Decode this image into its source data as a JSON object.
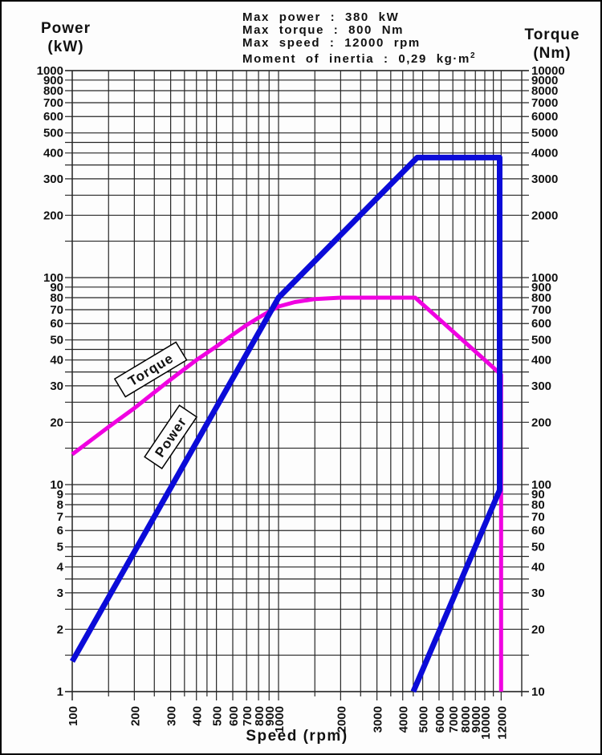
{
  "header": {
    "lines": [
      "Max power : 380 kW",
      "Max torque : 800 Nm",
      "Max speed : 12000 rpm"
    ],
    "moment_line": "Moment of inertia : 0,29 kg·m",
    "moment_superscript": "2"
  },
  "axes_titles": {
    "left_line1": "Power",
    "left_line2": "(kW)",
    "right_line1": "Torque",
    "right_line2": "(Nm)",
    "bottom": "Speed (rpm)"
  },
  "colors": {
    "power_curve": "#0b0bd8",
    "torque_curve": "#f000e1",
    "grid": "#262626",
    "text": "#111111"
  },
  "chart_data": {
    "type": "line",
    "title": "Motor power and torque vs speed",
    "x_axis": {
      "label": "Speed (rpm)",
      "scale": "log",
      "min": 100,
      "max": 12000,
      "gridlines": [
        100,
        150,
        200,
        250,
        300,
        350,
        400,
        450,
        500,
        600,
        700,
        800,
        900,
        1000,
        1500,
        2000,
        2500,
        3000,
        3500,
        4000,
        4500,
        5000,
        6000,
        7000,
        8000,
        9000,
        10000,
        11000,
        12000
      ],
      "labeled_ticks": [
        100,
        200,
        300,
        400,
        500,
        600,
        700,
        800,
        900,
        1000,
        2000,
        3000,
        4000,
        5000,
        6000,
        7000,
        8000,
        9000,
        10000,
        12000
      ]
    },
    "y_axis_left": {
      "label": "Power (kW)",
      "scale": "log",
      "min": 1,
      "max": 1000,
      "gridlines": [
        1,
        1.5,
        2,
        2.5,
        3,
        3.5,
        4,
        4.5,
        5,
        6,
        7,
        8,
        9,
        10,
        15,
        20,
        25,
        30,
        35,
        40,
        45,
        50,
        60,
        70,
        80,
        90,
        100,
        150,
        200,
        250,
        300,
        350,
        400,
        450,
        500,
        600,
        700,
        800,
        900,
        1000
      ],
      "labeled_ticks": [
        1,
        2,
        3,
        4,
        5,
        6,
        7,
        8,
        9,
        10,
        20,
        30,
        40,
        50,
        60,
        70,
        80,
        90,
        100,
        200,
        300,
        400,
        500,
        600,
        700,
        800,
        900,
        1000
      ]
    },
    "y_axis_right": {
      "label": "Torque (Nm)",
      "scale": "log",
      "min": 10,
      "max": 10000,
      "labeled_ticks": [
        10,
        20,
        30,
        40,
        50,
        60,
        70,
        80,
        90,
        100,
        200,
        300,
        400,
        500,
        600,
        700,
        800,
        900,
        1000,
        2000,
        3000,
        4000,
        5000,
        6000,
        7000,
        8000,
        9000,
        10000
      ]
    },
    "series": [
      {
        "name": "Torque",
        "axis": "right",
        "color": "#f000e1",
        "stroke_width": 5,
        "points": [
          [
            100,
            140
          ],
          [
            150,
            190
          ],
          [
            200,
            234
          ],
          [
            250,
            279
          ],
          [
            300,
            322
          ],
          [
            400,
            400
          ],
          [
            500,
            465
          ],
          [
            600,
            530
          ],
          [
            700,
            590
          ],
          [
            800,
            640
          ],
          [
            900,
            685
          ],
          [
            1000,
            725
          ],
          [
            1200,
            762
          ],
          [
            1500,
            788
          ],
          [
            2000,
            800
          ],
          [
            4600,
            800
          ],
          [
            12000,
            340
          ],
          [
            12000,
            10
          ]
        ]
      },
      {
        "name": "Power",
        "axis": "left",
        "color": "#0b0bd8",
        "stroke_width": 7,
        "points": [
          [
            100,
            1.4
          ],
          [
            1000,
            80
          ],
          [
            4700,
            380
          ],
          [
            11800,
            380
          ],
          [
            11800,
            9.4
          ],
          [
            4500,
            1
          ]
        ]
      }
    ],
    "curve_labels": [
      {
        "text": "Torque",
        "rpm": 240,
        "left_value": 36,
        "rotate": -31
      },
      {
        "text": "Power",
        "rpm": 300,
        "left_value": 17,
        "rotate": -56
      }
    ],
    "specs": {
      "max_power_kw": 380,
      "max_torque_nm": 800,
      "max_speed_rpm": 12000,
      "moment_of_inertia_kgm2": "0,29"
    }
  }
}
